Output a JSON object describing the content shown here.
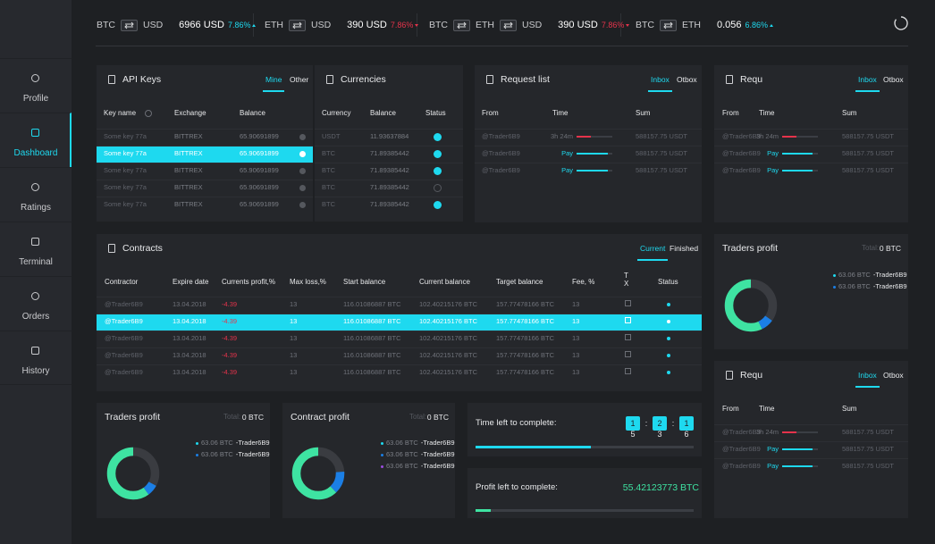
{
  "ticker": [
    {
      "pair": [
        "BTC",
        "USD"
      ],
      "price": "6966 USD",
      "change": "7.86%",
      "trend": "up"
    },
    {
      "pair": [
        "ETH",
        "USD"
      ],
      "price": "390 USD",
      "change": "7.86%",
      "trend": "down"
    },
    {
      "pair": [
        "BTC",
        "ETH",
        "USD"
      ],
      "price": "390 USD",
      "change": "7.86%",
      "trend": "down"
    },
    {
      "pair": [
        "BTC",
        "ETH"
      ],
      "price": "0.056",
      "change": "6.86%",
      "trend": "up"
    }
  ],
  "nav": {
    "active": 1,
    "items": [
      "Profile",
      "Dashboard",
      "Ratings",
      "Terminal",
      "Orders",
      "History"
    ]
  },
  "api_keys": {
    "title": "API Keys",
    "tabs": [
      "Mine",
      "Other"
    ],
    "active_tab": 0,
    "columns": [
      "Key name",
      "Exchange",
      "Balance"
    ],
    "selected_row": 1,
    "rows": [
      [
        "Some key 77a",
        "BITTREX",
        "65.90691899"
      ],
      [
        "Some key 77a",
        "BITTREX",
        "65.90691899"
      ],
      [
        "Some key 77a",
        "BITTREX",
        "65.90691899"
      ],
      [
        "Some key 77a",
        "BITTREX",
        "65.90691899"
      ],
      [
        "Some key 77a",
        "BITTREX",
        "65.90691899"
      ]
    ]
  },
  "currencies": {
    "title": "Currencies",
    "columns": [
      "Currency",
      "Balance",
      "Status"
    ],
    "rows": [
      {
        "cells": [
          "USDT",
          "11.93637884"
        ],
        "checked": true
      },
      {
        "cells": [
          "BTC",
          "71.89385442"
        ],
        "checked": true
      },
      {
        "cells": [
          "BTC",
          "71.89385442"
        ],
        "checked": true
      },
      {
        "cells": [
          "BTC",
          "71.89385442"
        ],
        "checked": false
      },
      {
        "cells": [
          "BTC",
          "71.89385442"
        ],
        "checked": true
      }
    ]
  },
  "request_lists": [
    {
      "title": "Request list",
      "tabs": [
        "Inbox",
        "Otbox"
      ],
      "active_tab": 0,
      "columns": [
        "From",
        "Time",
        "Sum"
      ],
      "rows": [
        {
          "from": "@Trader6B9",
          "time": "3h 24m",
          "time_color": "#6b6e75",
          "progress": 40,
          "bar_color": "#e5334b",
          "sum": "588157.75 USDT"
        },
        {
          "from": "@Trader6B9",
          "time": "Pay",
          "time_color": "#1ed9ef",
          "progress": 88,
          "bar_color": "#1ed9ef",
          "sum": "588157.75 USDT"
        },
        {
          "from": "@Trader6B9",
          "time": "Pay",
          "time_color": "#1ed9ef",
          "progress": 88,
          "bar_color": "#1ed9ef",
          "sum": "588157.75 USDT"
        }
      ]
    },
    {
      "title": "Requ",
      "tabs": [
        "Inbox",
        "Otbox"
      ],
      "active_tab": 0,
      "columns": [
        "From",
        "Time",
        "Sum"
      ],
      "rows": [
        {
          "from": "@Trader6B9",
          "time": "3h 24m",
          "time_color": "#6b6e75",
          "progress": 40,
          "bar_color": "#e5334b",
          "sum": "588157.75 USDT"
        },
        {
          "from": "@Trader6B9",
          "time": "Pay",
          "time_color": "#1ed9ef",
          "progress": 85,
          "bar_color": "#1ed9ef",
          "sum": "588157.75 USDT"
        },
        {
          "from": "@Trader6B9",
          "time": "Pay",
          "time_color": "#1ed9ef",
          "progress": 85,
          "bar_color": "#1ed9ef",
          "sum": "588157.75 USDT"
        }
      ]
    },
    {
      "title": "Requ",
      "tabs": [
        "Inbox",
        "Otbox"
      ],
      "active_tab": 0,
      "columns": [
        "From",
        "Time",
        "Sum"
      ],
      "rows": [
        {
          "from": "@Trader6B9",
          "time": "3h 24m",
          "time_color": "#6b6e75",
          "progress": 40,
          "bar_color": "#e5334b",
          "sum": "588157.75 USDT"
        },
        {
          "from": "@Trader6B9",
          "time": "Pay",
          "time_color": "#1ed9ef",
          "progress": 85,
          "bar_color": "#1ed9ef",
          "sum": "588157.75 USDT"
        },
        {
          "from": "@Trader6B9",
          "time": "Pay",
          "time_color": "#1ed9ef",
          "progress": 85,
          "bar_color": "#1ed9ef",
          "sum": "588157.75 USDT"
        }
      ]
    }
  ],
  "contracts": {
    "title": "Contracts",
    "tabs": [
      "Current",
      "Finished"
    ],
    "active_tab": 0,
    "selected_row": 1,
    "columns": [
      "Contractor",
      "Expire date",
      "Currents profit,%",
      "Max loss,%",
      "Start balance",
      "Current balance",
      "Target balance",
      "Fee, %",
      "T X",
      "Status"
    ],
    "rows": [
      [
        "@Trader6B9",
        "13.04.2018",
        "-4.39",
        "13",
        "116.01086887 BTC",
        "102.40215176 BTC",
        "157.77478166 BTC",
        "13"
      ],
      [
        "@Trader6B9",
        "13.04.2018",
        "-4.39",
        "13",
        "116.01086887 BTC",
        "102.40215176 BTC",
        "157.77478166 BTC",
        "13"
      ],
      [
        "@Trader6B9",
        "13.04.2018",
        "-4.39",
        "13",
        "116.01086887 BTC",
        "102.40215176 BTC",
        "157.77478166 BTC",
        "13"
      ],
      [
        "@Trader6B9",
        "13.04.2018",
        "-4.39",
        "13",
        "116.01086887 BTC",
        "102.40215176 BTC",
        "157.77478166 BTC",
        "13"
      ],
      [
        "@Trader6B9",
        "13.04.2018",
        "-4.39",
        "13",
        "116.01086887 BTC",
        "102.40215176 BTC",
        "157.77478166 BTC",
        "13"
      ]
    ]
  },
  "profit_charts": [
    {
      "title": "Traders profit",
      "total_label": "Total:",
      "total": "0 BTC",
      "donut": [
        {
          "value": 57,
          "color": "#3ee3a2"
        },
        {
          "value": 8,
          "color": "#1b7fe6"
        }
      ],
      "legend": [
        {
          "color": "#1ed9ef",
          "amount": "63.06 BTC",
          "name": "-Trader6B9"
        },
        {
          "color": "#1b7fe6",
          "amount": "63.06 BTC",
          "name": "-Trader6B9"
        }
      ]
    },
    {
      "title": "Traders profit",
      "total_label": "Total:",
      "total": "0 BTC",
      "donut": [
        {
          "value": 60,
          "color": "#3ee3a2"
        },
        {
          "value": 7,
          "color": "#1b7fe6"
        }
      ],
      "legend": [
        {
          "color": "#1ed9ef",
          "amount": "63.06 BTC",
          "name": "-Trader6B9"
        },
        {
          "color": "#1b7fe6",
          "amount": "63.06 BTC",
          "name": "-Trader6B9"
        }
      ]
    },
    {
      "title": "Contract profit",
      "total_label": "Total:",
      "total": "0 BTC",
      "donut": [
        {
          "value": 62,
          "color": "#3ee3a2"
        },
        {
          "value": 14,
          "color": "#1b7fe6"
        }
      ],
      "legend": [
        {
          "color": "#1ed9ef",
          "amount": "63.06 BTC",
          "name": "-Trader6B9"
        },
        {
          "color": "#1b7fe6",
          "amount": "63.06 BTC",
          "name": "-Trader6B9"
        },
        {
          "color": "#9b4de0",
          "amount": "63.06 BTC",
          "name": "-Trader6B9"
        }
      ]
    }
  ],
  "timer": {
    "label": "Time left to complete:",
    "digits": [
      "1",
      "2",
      "1"
    ],
    "separator": ":",
    "sub": [
      "5",
      "3",
      "6"
    ],
    "progress": 53
  },
  "profit_left": {
    "label": "Profit left to complete:",
    "value": "55.42123773 BTC",
    "progress": 7
  }
}
